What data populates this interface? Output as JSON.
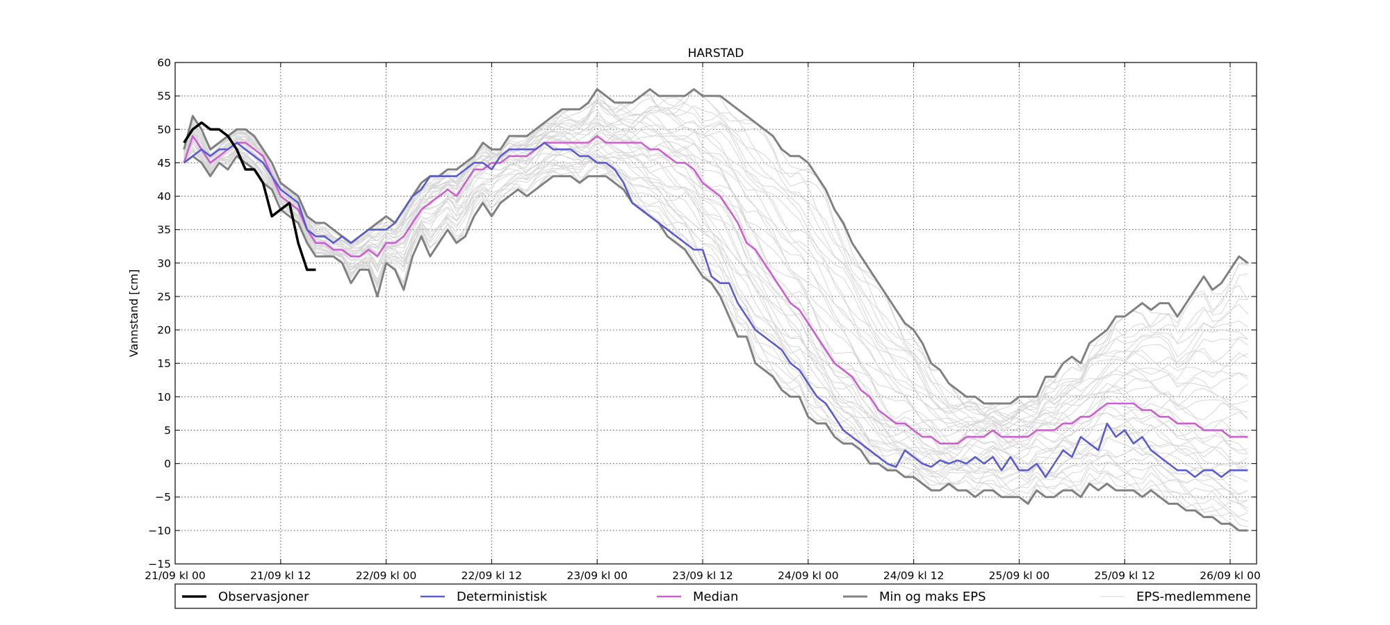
{
  "chart_data": {
    "type": "line",
    "title": "HARSTAD",
    "xlabel": "",
    "ylabel": "Vannstand [cm]",
    "x_unit": "hours since 21/09 kl 00",
    "xlim": [
      -2,
      121
    ],
    "ylim": [
      -15,
      60
    ],
    "yticks": [
      -15,
      -10,
      -5,
      0,
      5,
      10,
      15,
      20,
      25,
      30,
      35,
      40,
      45,
      50,
      55,
      60
    ],
    "xticks": [
      {
        "x": -2,
        "label": "21/09 kl 00"
      },
      {
        "x": 10,
        "label": "21/09 kl 12"
      },
      {
        "x": 22,
        "label": "22/09 kl 00"
      },
      {
        "x": 34,
        "label": "22/09 kl 12"
      },
      {
        "x": 46,
        "label": "23/09 kl 00"
      },
      {
        "x": 58,
        "label": "23/09 kl 12"
      },
      {
        "x": 70,
        "label": "24/09 kl 00"
      },
      {
        "x": 82,
        "label": "24/09 kl 12"
      },
      {
        "x": 94,
        "label": "25/09 kl 00"
      },
      {
        "x": 106,
        "label": "25/09 kl 12"
      },
      {
        "x": 118,
        "label": "26/09 kl 00"
      }
    ],
    "grid": true,
    "legend_position": "bottom",
    "legend": [
      {
        "label": "Observasjoner",
        "color": "#000000"
      },
      {
        "label": "Deterministisk",
        "color": "#5b5bcf"
      },
      {
        "label": "Median",
        "color": "#cc5fcf"
      },
      {
        "label": "Min og maks EPS",
        "color": "#808080"
      },
      {
        "label": "EPS-medlemmene",
        "color": "#d6d6d6"
      }
    ],
    "series": [
      {
        "name": "Observasjoner",
        "color": "#000000",
        "x": [
          -1,
          0,
          1,
          2,
          3,
          4,
          5,
          6,
          7,
          8,
          9,
          10,
          11,
          12,
          13,
          14
        ],
        "y": [
          48,
          50,
          51,
          50,
          50,
          49,
          47,
          44,
          44,
          42,
          37,
          38,
          39,
          33,
          29,
          29
        ]
      },
      {
        "name": "Deterministisk",
        "color": "#5b5bcf",
        "x": [
          -1,
          0,
          1,
          2,
          3,
          4,
          5,
          6,
          7,
          8,
          9,
          10,
          11,
          12,
          13,
          14,
          15,
          16,
          17,
          18,
          19,
          20,
          21,
          22,
          23,
          24,
          25,
          26,
          27,
          28,
          29,
          30,
          31,
          32,
          33,
          34,
          35,
          36,
          37,
          38,
          39,
          40,
          41,
          42,
          43,
          44,
          45,
          46,
          47,
          48,
          49,
          50,
          51,
          52,
          53,
          54,
          55,
          56,
          57,
          58,
          59,
          60,
          61,
          62,
          63,
          64,
          65,
          66,
          67,
          68,
          69,
          70,
          71,
          72,
          73,
          74,
          75,
          76,
          77,
          78,
          79,
          80,
          81,
          82,
          83,
          84,
          85,
          86,
          87,
          88,
          89,
          90,
          91,
          92,
          93,
          94,
          95,
          96,
          97,
          98,
          99,
          100,
          101,
          102,
          103,
          104,
          105,
          106,
          107,
          108,
          109,
          110,
          111,
          112,
          113,
          114,
          115,
          116,
          117,
          118,
          119,
          120
        ],
        "y": [
          45,
          46,
          47,
          46,
          47,
          47,
          48,
          47,
          46,
          45,
          43,
          41,
          40,
          39,
          35,
          34,
          34,
          33,
          34,
          33,
          34,
          35,
          35,
          35,
          36,
          38,
          40,
          41,
          43,
          43,
          43,
          43,
          44,
          45,
          45,
          44,
          46,
          47,
          47,
          47,
          47,
          48,
          47,
          47,
          47,
          46,
          46,
          45,
          45,
          44,
          42,
          39,
          38,
          37,
          36,
          35,
          34,
          33,
          32,
          32,
          28,
          27,
          27,
          24,
          22,
          20,
          19,
          18,
          17,
          15,
          14,
          12,
          10,
          9,
          7,
          5,
          4,
          3,
          2,
          1,
          0,
          -0.5,
          2,
          1,
          0,
          -0.5,
          0.5,
          0,
          0.5,
          0,
          1,
          0,
          1,
          -1,
          1,
          -1,
          -1,
          0,
          -2,
          0,
          2,
          1,
          4,
          3,
          2,
          6,
          4,
          5,
          3,
          4,
          2,
          1,
          0,
          -1,
          -1,
          -2,
          -1,
          -1,
          -2,
          -1,
          -1,
          -1
        ]
      },
      {
        "name": "Median",
        "color": "#cc5fcf",
        "x": [
          -1,
          0,
          1,
          2,
          3,
          4,
          5,
          6,
          7,
          8,
          9,
          10,
          11,
          12,
          13,
          14,
          15,
          16,
          17,
          18,
          19,
          20,
          21,
          22,
          23,
          24,
          25,
          26,
          27,
          28,
          29,
          30,
          31,
          32,
          33,
          34,
          35,
          36,
          37,
          38,
          39,
          40,
          41,
          42,
          43,
          44,
          45,
          46,
          47,
          48,
          49,
          50,
          51,
          52,
          53,
          54,
          55,
          56,
          57,
          58,
          59,
          60,
          61,
          62,
          63,
          64,
          65,
          66,
          67,
          68,
          69,
          70,
          71,
          72,
          73,
          74,
          75,
          76,
          77,
          78,
          79,
          80,
          81,
          82,
          83,
          84,
          85,
          86,
          87,
          88,
          89,
          90,
          91,
          92,
          93,
          94,
          95,
          96,
          97,
          98,
          99,
          100,
          101,
          102,
          103,
          104,
          105,
          106,
          107,
          108,
          109,
          110,
          111,
          112,
          113,
          114,
          115,
          116,
          117,
          118,
          119,
          120
        ],
        "y": [
          45,
          49,
          47,
          45,
          46,
          47,
          48,
          48,
          47,
          46,
          43,
          40,
          39,
          38,
          35,
          33,
          33,
          32,
          32,
          31,
          31,
          32,
          31,
          33,
          33,
          34,
          36,
          38,
          39,
          40,
          41,
          40,
          42,
          44,
          44,
          45,
          45,
          46,
          46,
          46,
          47,
          48,
          48,
          48,
          48,
          48,
          48,
          49,
          48,
          48,
          48,
          48,
          48,
          47,
          47,
          46,
          45,
          45,
          44,
          42,
          41,
          40,
          38,
          36,
          33,
          32,
          30,
          28,
          26,
          24,
          23,
          21,
          19,
          17,
          15,
          14,
          13,
          11,
          10,
          8,
          7,
          6,
          6,
          5,
          4,
          4,
          3,
          3,
          3,
          4,
          4,
          4,
          5,
          4,
          4,
          4,
          4,
          5,
          5,
          5,
          6,
          6,
          7,
          7,
          8,
          9,
          9,
          9,
          9,
          8,
          8,
          7,
          7,
          6,
          6,
          6,
          5,
          5,
          5,
          4,
          4,
          4
        ]
      },
      {
        "name": "Min og maks EPS",
        "color": "#808080",
        "x": [
          -1,
          0,
          1,
          2,
          3,
          4,
          5,
          6,
          7,
          8,
          9,
          10,
          11,
          12,
          13,
          14,
          15,
          16,
          17,
          18,
          19,
          20,
          21,
          22,
          23,
          24,
          25,
          26,
          27,
          28,
          29,
          30,
          31,
          32,
          33,
          34,
          35,
          36,
          37,
          38,
          39,
          40,
          41,
          42,
          43,
          44,
          45,
          46,
          47,
          48,
          49,
          50,
          51,
          52,
          53,
          54,
          55,
          56,
          57,
          58,
          59,
          60,
          61,
          62,
          63,
          64,
          65,
          66,
          67,
          68,
          69,
          70,
          71,
          72,
          73,
          74,
          75,
          76,
          77,
          78,
          79,
          80,
          81,
          82,
          83,
          84,
          85,
          86,
          87,
          88,
          89,
          90,
          91,
          92,
          93,
          94,
          95,
          96,
          97,
          98,
          99,
          100,
          101,
          102,
          103,
          104,
          105,
          106,
          107,
          108,
          109,
          110,
          111,
          112,
          113,
          114,
          115,
          116,
          117,
          118,
          119,
          120
        ],
        "y": [
          47,
          52,
          50,
          47,
          48,
          49,
          50,
          50,
          49,
          47,
          45,
          42,
          41,
          40,
          37,
          36,
          36,
          35,
          34,
          33,
          34,
          35,
          36,
          37,
          36,
          38,
          40,
          42,
          43,
          43,
          44,
          44,
          45,
          46,
          48,
          47,
          47,
          49,
          49,
          49,
          50,
          51,
          52,
          53,
          53,
          53,
          54,
          56,
          55,
          54,
          54,
          54,
          55,
          56,
          55,
          55,
          55,
          55,
          56,
          55,
          55,
          55,
          54,
          53,
          52,
          51,
          50,
          49,
          47,
          46,
          46,
          45,
          43,
          41,
          38,
          36,
          33,
          31,
          29,
          27,
          25,
          23,
          21,
          20,
          18,
          15,
          14,
          12,
          11,
          10,
          10,
          9,
          9,
          9,
          9,
          10,
          10,
          10,
          13,
          13,
          15,
          16,
          15,
          18,
          19,
          20,
          22,
          22,
          23,
          24,
          23,
          24,
          24,
          22,
          24,
          26,
          28,
          26,
          27,
          29,
          31,
          30
        ]
      },
      {
        "name": "Min og maks EPS",
        "color": "#808080",
        "x": [
          -1,
          0,
          1,
          2,
          3,
          4,
          5,
          6,
          7,
          8,
          9,
          10,
          11,
          12,
          13,
          14,
          15,
          16,
          17,
          18,
          19,
          20,
          21,
          22,
          23,
          24,
          25,
          26,
          27,
          28,
          29,
          30,
          31,
          32,
          33,
          34,
          35,
          36,
          37,
          38,
          39,
          40,
          41,
          42,
          43,
          44,
          45,
          46,
          47,
          48,
          49,
          50,
          51,
          52,
          53,
          54,
          55,
          56,
          57,
          58,
          59,
          60,
          61,
          62,
          63,
          64,
          65,
          66,
          67,
          68,
          69,
          70,
          71,
          72,
          73,
          74,
          75,
          76,
          77,
          78,
          79,
          80,
          81,
          82,
          83,
          84,
          85,
          86,
          87,
          88,
          89,
          90,
          91,
          92,
          93,
          94,
          95,
          96,
          97,
          98,
          99,
          100,
          101,
          102,
          103,
          104,
          105,
          106,
          107,
          108,
          109,
          110,
          111,
          112,
          113,
          114,
          115,
          116,
          117,
          118,
          119,
          120
        ],
        "y": [
          45,
          46,
          45,
          43,
          45,
          44,
          46,
          45,
          44,
          42,
          41,
          38,
          37,
          36,
          33,
          31,
          31,
          31,
          30,
          27,
          29,
          29,
          25,
          30,
          29,
          26,
          31,
          34,
          31,
          33,
          35,
          33,
          34,
          37,
          39,
          37,
          39,
          40,
          41,
          40,
          41,
          42,
          43,
          43,
          43,
          42,
          43,
          43,
          43,
          42,
          41,
          39,
          38,
          37,
          36,
          34,
          33,
          32,
          30,
          28,
          27,
          25,
          22,
          19,
          19,
          15,
          14,
          13,
          11,
          10,
          10,
          7,
          6,
          6,
          4,
          3,
          3,
          2,
          0,
          0,
          -1,
          -1,
          -2,
          -2,
          -3,
          -4,
          -4,
          -3,
          -4,
          -4,
          -5,
          -4,
          -4,
          -5,
          -5,
          -5,
          -6,
          -4,
          -5,
          -5,
          -4,
          -4,
          -5,
          -3,
          -4,
          -3,
          -4,
          -4,
          -4,
          -5,
          -4,
          -5,
          -6,
          -6,
          -7,
          -7,
          -8,
          -8,
          -9,
          -9,
          -10,
          -10
        ]
      }
    ]
  }
}
